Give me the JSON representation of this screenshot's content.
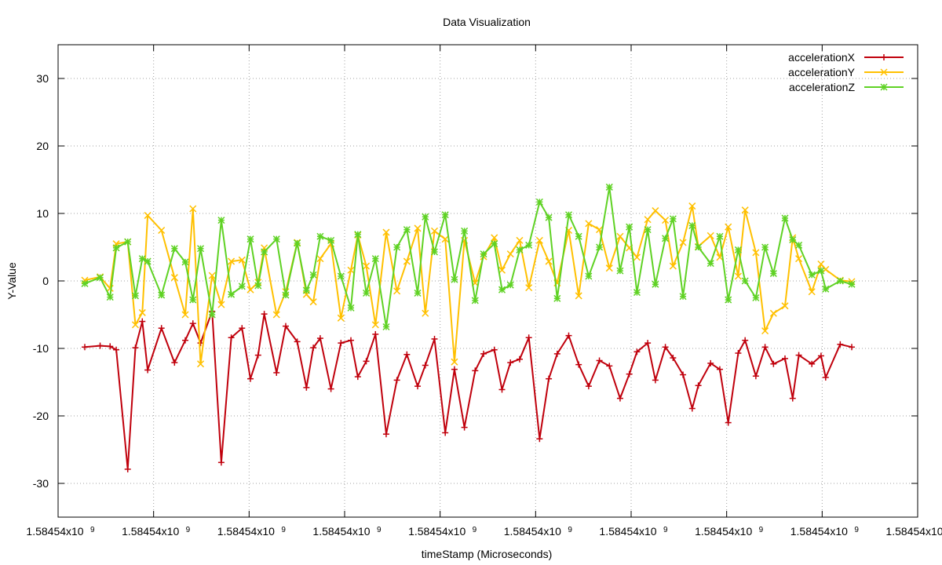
{
  "chart_data": {
    "type": "line",
    "title": "Data Visualization",
    "xlabel": "timeStamp (Microseconds)",
    "ylabel": "Y-Value",
    "ylim": [
      -35,
      35
    ],
    "yticks": [
      -30,
      -20,
      -10,
      0,
      10,
      20,
      30
    ],
    "xtick_labels": [
      "1.58454x10",
      "1.58454x10",
      "1.58454x10",
      "1.58454x10",
      "1.58454x10",
      "1.58454x10",
      "1.58454x10",
      "1.58454x10",
      "1.58454x10",
      "1.58454x10"
    ],
    "xtick_exponent": "9",
    "grid": true,
    "legend_position": "top-right",
    "x": [
      0,
      0.2,
      0.33,
      0.41,
      0.56,
      0.66,
      0.75,
      0.82,
      1.0,
      1.17,
      1.31,
      1.41,
      1.51,
      1.66,
      1.78,
      1.91,
      2.05,
      2.16,
      2.26,
      2.34,
      2.5,
      2.62,
      2.77,
      2.89,
      2.98,
      3.07,
      3.21,
      3.34,
      3.47,
      3.56,
      3.67,
      3.79,
      3.93,
      4.07,
      4.2,
      4.34,
      4.44,
      4.56,
      4.7,
      4.82,
      4.95,
      5.09,
      5.2,
      5.34,
      5.44,
      5.55,
      5.67,
      5.79,
      5.93,
      6.05,
      6.16,
      6.31,
      6.44,
      6.57,
      6.71,
      6.84,
      6.98,
      7.1,
      7.2,
      7.34,
      7.44,
      7.57,
      7.67,
      7.8,
      7.92,
      8.0,
      8.16,
      8.28,
      8.39,
      8.52,
      8.61,
      8.75,
      8.87,
      8.98,
      9.13,
      9.23,
      9.31,
      9.48,
      9.6,
      9.66,
      9.85,
      10.0
    ],
    "series": [
      {
        "name": "accelerationX",
        "color": "#c0000c",
        "marker": "plus",
        "values": [
          -9.8,
          -9.6,
          -9.7,
          -10.2,
          -27.9,
          -9.9,
          -6.0,
          -13.2,
          -7.0,
          -12.1,
          -8.8,
          -6.3,
          -9.2,
          -4.5,
          -26.9,
          -8.4,
          -7.0,
          -14.5,
          -11.0,
          -4.9,
          -13.6,
          -6.7,
          -9.0,
          -15.8,
          -9.9,
          -8.5,
          -16.0,
          -9.2,
          -8.8,
          -14.2,
          -11.9,
          -7.9,
          -22.7,
          -14.7,
          -10.9,
          -15.6,
          -12.5,
          -8.6,
          -22.5,
          -13.1,
          -21.7,
          -13.3,
          -10.8,
          -10.2,
          -16.1,
          -12.1,
          -11.6,
          -8.4,
          -23.4,
          -14.5,
          -10.8,
          -8.1,
          -12.4,
          -15.6,
          -11.8,
          -12.6,
          -17.4,
          -13.8,
          -10.5,
          -9.2,
          -14.7,
          -9.8,
          -11.4,
          -13.9,
          -18.9,
          -15.5,
          -12.2,
          -13.1,
          -21.0,
          -10.7,
          -8.8,
          -14.1,
          -9.8,
          -12.3,
          -11.5,
          -17.4,
          -11.0,
          -12.3,
          -11.1,
          -14.3,
          -9.4,
          -9.8
        ]
      },
      {
        "name": "accelerationY",
        "color": "#ffc000",
        "marker": "cross",
        "values": [
          0.1,
          0.6,
          -1.1,
          5.5,
          5.8,
          -6.5,
          -4.7,
          9.7,
          7.5,
          0.5,
          -5.0,
          10.7,
          -12.3,
          0.8,
          -3.5,
          2.9,
          3.1,
          -1.3,
          -0.2,
          4.9,
          -5.0,
          -1.6,
          5.7,
          -2.0,
          -3.1,
          3.3,
          5.5,
          -5.5,
          1.6,
          6.8,
          2.2,
          -6.5,
          7.2,
          -1.5,
          2.9,
          7.8,
          -4.8,
          7.4,
          6.2,
          -12.0,
          6.0,
          -0.3,
          3.6,
          6.4,
          1.6,
          4.0,
          6.0,
          -1.0,
          6.0,
          2.9,
          -0.3,
          7.5,
          -2.2,
          8.5,
          7.6,
          1.9,
          6.6,
          4.9,
          3.5,
          9.1,
          10.4,
          9.0,
          2.2,
          5.7,
          11.1,
          5.1,
          6.7,
          3.5,
          8.0,
          0.7,
          10.5,
          4.2,
          -7.4,
          -4.8,
          -3.7,
          6.4,
          3.3,
          -1.6,
          2.5,
          1.7,
          0.1,
          -0.1
        ]
      },
      {
        "name": "accelerationZ",
        "color": "#5fd224",
        "marker": "star",
        "values": [
          -0.4,
          0.5,
          -2.4,
          4.9,
          5.8,
          -2.2,
          3.3,
          2.9,
          -2.1,
          4.8,
          2.8,
          -2.8,
          4.8,
          -5.0,
          9.0,
          -2.0,
          -0.8,
          6.2,
          -0.7,
          4.3,
          6.2,
          -2.1,
          5.6,
          -1.4,
          0.9,
          6.6,
          6.0,
          0.7,
          -4.0,
          6.9,
          -1.8,
          3.3,
          -6.8,
          5.0,
          7.6,
          -1.8,
          9.5,
          4.3,
          9.8,
          0.2,
          7.4,
          -2.9,
          4.0,
          5.5,
          -1.3,
          -0.6,
          4.6,
          5.3,
          11.7,
          9.4,
          -2.6,
          9.8,
          6.6,
          0.7,
          5.0,
          13.9,
          1.5,
          8.0,
          -1.7,
          7.6,
          -0.5,
          6.3,
          9.2,
          -2.3,
          8.2,
          5.0,
          2.6,
          6.6,
          -2.8,
          4.6,
          0.0,
          -2.5,
          5.0,
          1.1,
          9.3,
          6.1,
          5.3,
          0.9,
          1.5,
          -1.2,
          0.0,
          -0.5
        ]
      }
    ]
  }
}
